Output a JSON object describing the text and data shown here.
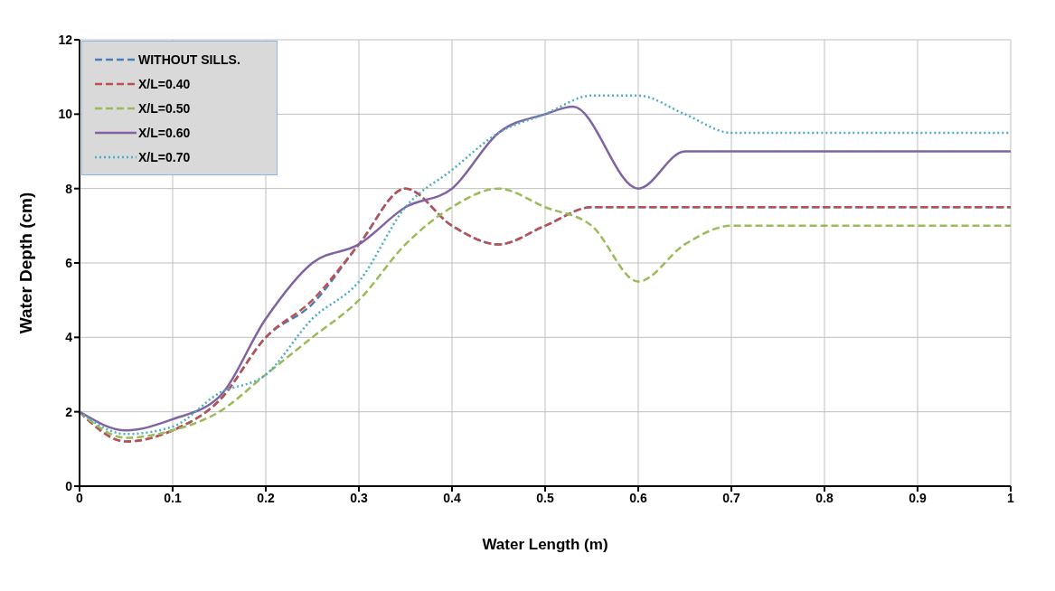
{
  "chart_data": {
    "type": "line",
    "xlabel": "Water Length (m)",
    "ylabel": "Water Depth (cm)",
    "xlim": [
      0,
      1
    ],
    "xticks": [
      0,
      0.1,
      0.2,
      0.3,
      0.4,
      0.5,
      0.6,
      0.7,
      0.8,
      0.9,
      1
    ],
    "ylim": [
      0,
      12
    ],
    "yticks": [
      0,
      2,
      4,
      6,
      8,
      10,
      12
    ],
    "grid": true,
    "legend": "top left",
    "marker": "none",
    "series": [
      {
        "name": "WITHOUT SILLS.",
        "color": "#4a7ebb",
        "line_style": "dashed",
        "x": [
          0,
          0.05,
          0.1,
          0.15,
          0.2,
          0.25,
          0.3,
          0.35,
          0.4,
          0.45,
          0.5,
          0.55,
          0.6,
          0.7,
          0.8,
          0.9,
          1
        ],
        "values": [
          2,
          1.2,
          1.5,
          2.3,
          4,
          4.9,
          6.5,
          8,
          7,
          6.5,
          7,
          7.5,
          7.5,
          7.5,
          7.5,
          7.5,
          7.5
        ]
      },
      {
        "name": "X/L=0.40",
        "color": "#c0504d",
        "line_style": "dashed",
        "x": [
          0,
          0.05,
          0.1,
          0.15,
          0.2,
          0.25,
          0.3,
          0.35,
          0.4,
          0.45,
          0.5,
          0.55,
          0.6,
          0.7,
          0.8,
          0.9,
          1
        ],
        "values": [
          2,
          1.2,
          1.5,
          2.3,
          4,
          5,
          6.5,
          8,
          7,
          6.5,
          7,
          7.5,
          7.5,
          7.5,
          7.5,
          7.5,
          7.5
        ]
      },
      {
        "name": "X/L=0.50",
        "color": "#9bbb59",
        "line_style": "dashed",
        "x": [
          0,
          0.05,
          0.1,
          0.15,
          0.2,
          0.25,
          0.3,
          0.35,
          0.4,
          0.45,
          0.5,
          0.55,
          0.6,
          0.65,
          0.7,
          0.8,
          0.9,
          1
        ],
        "values": [
          2,
          1.3,
          1.5,
          2,
          3,
          4,
          5,
          6.5,
          7.5,
          8,
          7.5,
          7,
          5.5,
          6.5,
          7,
          7,
          7,
          7
        ]
      },
      {
        "name": "X/L=0.60",
        "color": "#8064a2",
        "line_style": "solid",
        "x": [
          0,
          0.05,
          0.1,
          0.15,
          0.2,
          0.25,
          0.3,
          0.35,
          0.4,
          0.45,
          0.5,
          0.53,
          0.6,
          0.65,
          0.7,
          0.8,
          0.9,
          1
        ],
        "values": [
          2,
          1.5,
          1.8,
          2.4,
          4.5,
          6,
          6.5,
          7.5,
          8,
          9.5,
          10,
          10.2,
          8,
          9,
          9,
          9,
          9,
          9
        ]
      },
      {
        "name": "X/L=0.70",
        "color": "#4bacc6",
        "line_style": "dotted",
        "x": [
          0,
          0.05,
          0.1,
          0.15,
          0.2,
          0.25,
          0.3,
          0.35,
          0.4,
          0.45,
          0.5,
          0.55,
          0.6,
          0.65,
          0.7,
          0.8,
          0.9,
          1
        ],
        "values": [
          2,
          1.4,
          1.6,
          2.5,
          3,
          4.5,
          5.5,
          7.5,
          8.5,
          9.5,
          10,
          10.5,
          10.5,
          10,
          9.5,
          9.5,
          9.5,
          9.5
        ]
      }
    ]
  }
}
